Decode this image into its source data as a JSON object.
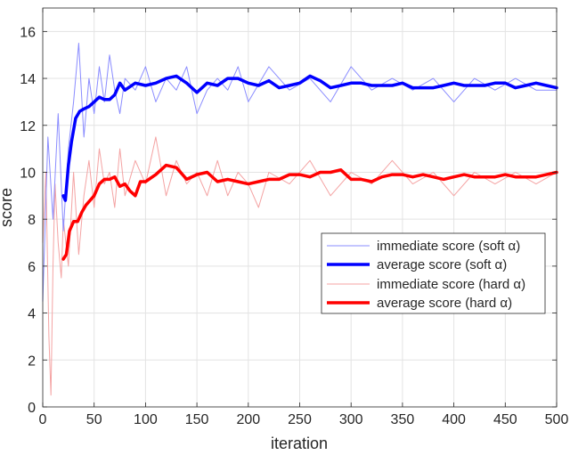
{
  "chart_data": {
    "type": "line",
    "xlabel": "iteration",
    "ylabel": "score",
    "xlim": [
      0,
      500
    ],
    "ylim": [
      0,
      17
    ],
    "xticks": [
      0,
      50,
      100,
      150,
      200,
      250,
      300,
      350,
      400,
      450,
      500
    ],
    "yticks": [
      0,
      2,
      4,
      6,
      8,
      10,
      12,
      14,
      16
    ],
    "grid": true,
    "legend_position": "center-right",
    "series": [
      {
        "name": "immediate score (soft α)",
        "color": "#8a8cff",
        "style": "thin",
        "x": [
          0,
          5,
          10,
          15,
          20,
          25,
          30,
          35,
          40,
          45,
          50,
          55,
          60,
          65,
          70,
          75,
          80,
          90,
          100,
          110,
          120,
          130,
          140,
          150,
          160,
          170,
          180,
          190,
          200,
          220,
          240,
          260,
          280,
          300,
          320,
          340,
          360,
          380,
          400,
          420,
          440,
          460,
          480,
          500
        ],
        "y": [
          4.5,
          11.5,
          8.0,
          12.5,
          7.5,
          11.0,
          13.0,
          15.5,
          11.5,
          14.0,
          12.5,
          14.5,
          13.0,
          15.0,
          13.5,
          12.5,
          14.0,
          13.5,
          14.5,
          13.0,
          14.0,
          13.5,
          14.5,
          12.5,
          13.5,
          14.0,
          13.5,
          14.5,
          13.0,
          14.5,
          13.5,
          14.0,
          13.0,
          14.5,
          13.5,
          14.0,
          13.5,
          14.0,
          13.0,
          14.0,
          13.5,
          14.0,
          13.5,
          13.5
        ]
      },
      {
        "name": "average score (soft α)",
        "color": "#0000ff",
        "style": "thick",
        "x": [
          20,
          22,
          25,
          28,
          32,
          36,
          40,
          45,
          50,
          55,
          60,
          65,
          70,
          75,
          80,
          90,
          100,
          110,
          120,
          130,
          140,
          150,
          160,
          170,
          180,
          190,
          200,
          210,
          220,
          230,
          240,
          250,
          260,
          270,
          280,
          290,
          300,
          310,
          320,
          330,
          340,
          350,
          360,
          370,
          380,
          390,
          400,
          410,
          420,
          430,
          440,
          450,
          460,
          470,
          480,
          490,
          500
        ],
        "y": [
          9.0,
          8.8,
          10.3,
          11.3,
          12.3,
          12.6,
          12.7,
          12.8,
          13.0,
          13.2,
          13.1,
          13.1,
          13.3,
          13.8,
          13.5,
          13.8,
          13.7,
          13.8,
          14.0,
          14.1,
          13.8,
          13.4,
          13.8,
          13.7,
          14.0,
          14.0,
          13.8,
          13.7,
          13.9,
          13.6,
          13.7,
          13.8,
          14.1,
          13.9,
          13.6,
          13.7,
          13.8,
          13.8,
          13.7,
          13.7,
          13.7,
          13.8,
          13.6,
          13.6,
          13.6,
          13.7,
          13.8,
          13.7,
          13.7,
          13.7,
          13.8,
          13.8,
          13.6,
          13.7,
          13.8,
          13.7,
          13.6
        ]
      },
      {
        "name": "immediate score (hard α)",
        "color": "#f4a3a3",
        "style": "thin",
        "x": [
          0,
          3,
          6,
          8,
          10,
          12,
          15,
          18,
          20,
          25,
          30,
          35,
          40,
          45,
          50,
          55,
          60,
          65,
          70,
          75,
          80,
          90,
          100,
          110,
          120,
          130,
          140,
          150,
          160,
          170,
          180,
          190,
          200,
          210,
          220,
          240,
          260,
          280,
          300,
          320,
          340,
          360,
          380,
          400,
          420,
          440,
          460,
          480,
          500
        ],
        "y": [
          7.0,
          10.0,
          3.0,
          0.5,
          6.0,
          9.5,
          7.0,
          5.5,
          8.0,
          6.0,
          10.0,
          6.5,
          9.0,
          10.5,
          8.5,
          11.0,
          9.5,
          10.0,
          8.5,
          11.0,
          9.0,
          10.5,
          9.5,
          11.5,
          9.0,
          10.5,
          9.5,
          10.0,
          9.0,
          10.5,
          9.0,
          10.0,
          9.5,
          8.5,
          10.0,
          9.5,
          10.5,
          9.0,
          10.0,
          9.5,
          10.5,
          9.5,
          10.0,
          9.0,
          10.0,
          9.5,
          10.0,
          9.5,
          10.0
        ]
      },
      {
        "name": "average score (hard α)",
        "color": "#ff0000",
        "style": "thick",
        "x": [
          20,
          23,
          26,
          30,
          34,
          38,
          42,
          46,
          50,
          55,
          60,
          65,
          70,
          75,
          80,
          85,
          90,
          95,
          100,
          110,
          120,
          130,
          140,
          150,
          160,
          170,
          180,
          190,
          200,
          210,
          220,
          230,
          240,
          250,
          260,
          270,
          280,
          290,
          300,
          310,
          320,
          330,
          340,
          350,
          360,
          370,
          380,
          390,
          400,
          410,
          420,
          430,
          440,
          450,
          460,
          470,
          480,
          490,
          500
        ],
        "y": [
          6.3,
          6.5,
          7.5,
          7.9,
          7.9,
          8.3,
          8.6,
          8.8,
          9.0,
          9.5,
          9.7,
          9.7,
          9.8,
          9.4,
          9.5,
          9.2,
          9.0,
          9.6,
          9.6,
          9.9,
          10.3,
          10.2,
          9.7,
          9.9,
          10.0,
          9.6,
          9.7,
          9.6,
          9.5,
          9.6,
          9.7,
          9.7,
          9.9,
          9.9,
          9.8,
          10.0,
          10.0,
          10.1,
          9.7,
          9.7,
          9.6,
          9.8,
          9.9,
          9.9,
          9.8,
          9.9,
          9.8,
          9.7,
          9.8,
          9.9,
          9.8,
          9.8,
          9.8,
          9.9,
          9.8,
          9.8,
          9.8,
          9.9,
          10.0
        ]
      }
    ]
  }
}
